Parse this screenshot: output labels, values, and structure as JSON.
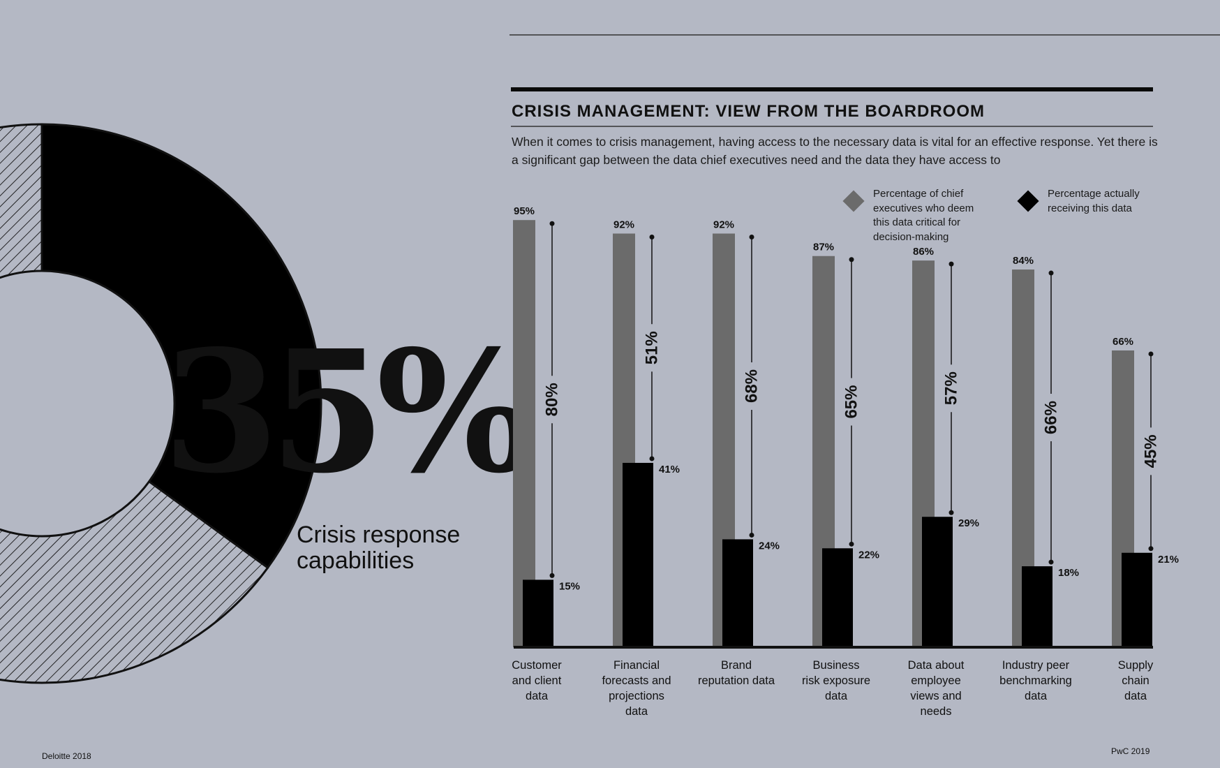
{
  "left_panel": {
    "headline_value": "35%",
    "caption": "Crisis response capabilities",
    "source": "Deloitte 2018",
    "donut_share": 0.35
  },
  "chart_data": {
    "type": "bar",
    "title": "CRISIS MANAGEMENT: VIEW FROM THE BOARDROOM",
    "subtitle": "When it comes to crisis management, having access to the necessary data is vital for an effective response. Yet there is a significant gap between the data chief executives need and the data they have access to",
    "categories": [
      "Customer and client data",
      "Financial forecasts and projections data",
      "Brand reputation data",
      "Business risk exposure data",
      "Data about employee views and needs",
      "Industry peer benchmarking data",
      "Supply chain data"
    ],
    "category_lines": [
      "Customer\nand client\ndata",
      "Financial\nforecasts and\nprojections\ndata",
      "Brand\nreputation data",
      "Business\nrisk exposure\ndata",
      "Data about\nemployee\nviews and\nneeds",
      "Industry peer\nbenchmarking\ndata",
      "Supply\nchain\ndata"
    ],
    "series": [
      {
        "name": "Percentage of chief executives who deem this data critical for decision-making",
        "values": [
          95,
          92,
          92,
          87,
          86,
          84,
          66
        ],
        "color": "#6b6b6b"
      },
      {
        "name": "Percentage actually receiving this data",
        "values": [
          15,
          41,
          24,
          22,
          29,
          18,
          21
        ],
        "color": "#000000"
      }
    ],
    "gap_labels": [
      "80%",
      "51%",
      "68%",
      "65%",
      "57%",
      "66%",
      "45%"
    ],
    "value_suffix": "%",
    "ylim": [
      0,
      100
    ],
    "legend": [
      {
        "label": "Percentage of chief\nexecutives who deem\nthis data critical for\ndecision-making",
        "color": "#6b6b6b"
      },
      {
        "label": "Percentage actually\nreceiving this data",
        "color": "#000000"
      }
    ],
    "legend_position": "top-right",
    "grid": false,
    "source": "PwC 2019"
  }
}
